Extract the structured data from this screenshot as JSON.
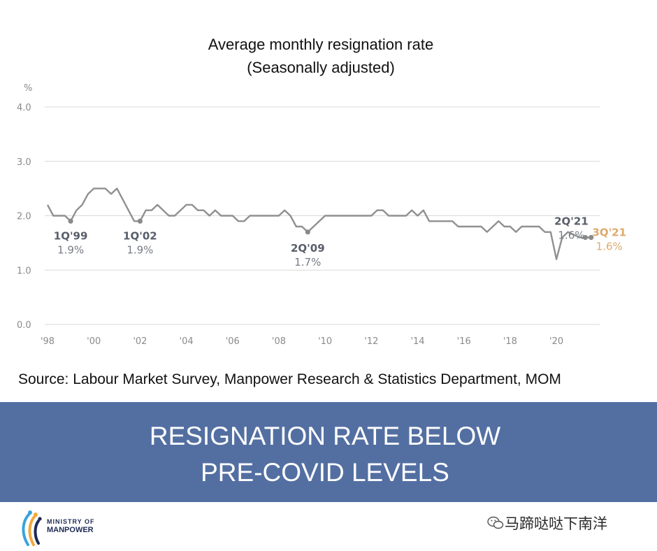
{
  "chart_data": {
    "type": "line",
    "title": "Average monthly resignation rate",
    "subtitle": "(Seasonally adjusted)",
    "y_unit": "%",
    "ylim": [
      0,
      4
    ],
    "y_ticks": [
      "4.0",
      "3.0",
      "2.0",
      "1.0",
      "0.0"
    ],
    "y_tick_values": [
      4,
      3,
      2,
      1,
      0
    ],
    "x_range": [
      1998,
      2021.75
    ],
    "x_ticks": [
      "'98",
      "'00",
      "'02",
      "'04",
      "'06",
      "'08",
      "'10",
      "'12",
      "'14",
      "'16",
      "'18",
      "'20"
    ],
    "x_tick_values": [
      1998,
      2000,
      2002,
      2004,
      2006,
      2008,
      2010,
      2012,
      2014,
      2016,
      2018,
      2020
    ],
    "grid": "horizontal",
    "series": [
      {
        "color": "#909090",
        "x": [
          1998.0,
          1998.25,
          1998.5,
          1998.75,
          1999.0,
          1999.25,
          1999.5,
          1999.75,
          2000.0,
          2000.25,
          2000.5,
          2000.75,
          2001.0,
          2001.25,
          2001.5,
          2001.75,
          2002.0,
          2002.25,
          2002.5,
          2002.75,
          2003.0,
          2003.25,
          2003.5,
          2003.75,
          2004.0,
          2004.25,
          2004.5,
          2004.75,
          2005.0,
          2005.25,
          2005.5,
          2005.75,
          2006.0,
          2006.25,
          2006.5,
          2006.75,
          2007.0,
          2007.25,
          2007.5,
          2007.75,
          2008.0,
          2008.25,
          2008.5,
          2008.75,
          2009.0,
          2009.25,
          2009.5,
          2009.75,
          2010.0,
          2010.25,
          2010.5,
          2010.75,
          2011.0,
          2011.25,
          2011.5,
          2011.75,
          2012.0,
          2012.25,
          2012.5,
          2012.75,
          2013.0,
          2013.25,
          2013.5,
          2013.75,
          2014.0,
          2014.25,
          2014.5,
          2014.75,
          2015.0,
          2015.25,
          2015.5,
          2015.75,
          2016.0,
          2016.25,
          2016.5,
          2016.75,
          2017.0,
          2017.25,
          2017.5,
          2017.75,
          2018.0,
          2018.25,
          2018.5,
          2018.75,
          2019.0,
          2019.25,
          2019.5,
          2019.75,
          2020.0,
          2020.25,
          2020.5,
          2020.75,
          2021.0,
          2021.25,
          2021.5
        ],
        "values": [
          2.2,
          2.0,
          2.0,
          2.0,
          1.9,
          2.1,
          2.2,
          2.4,
          2.5,
          2.5,
          2.5,
          2.4,
          2.5,
          2.3,
          2.1,
          1.9,
          1.9,
          2.1,
          2.1,
          2.2,
          2.1,
          2.0,
          2.0,
          2.1,
          2.2,
          2.2,
          2.1,
          2.1,
          2.0,
          2.1,
          2.0,
          2.0,
          2.0,
          1.9,
          1.9,
          2.0,
          2.0,
          2.0,
          2.0,
          2.0,
          2.0,
          2.1,
          2.0,
          1.8,
          1.8,
          1.7,
          1.8,
          1.9,
          2.0,
          2.0,
          2.0,
          2.0,
          2.0,
          2.0,
          2.0,
          2.0,
          2.0,
          2.1,
          2.1,
          2.0,
          2.0,
          2.0,
          2.0,
          2.1,
          2.0,
          2.1,
          1.9,
          1.9,
          1.9,
          1.9,
          1.9,
          1.8,
          1.8,
          1.8,
          1.8,
          1.8,
          1.7,
          1.8,
          1.9,
          1.8,
          1.8,
          1.7,
          1.8,
          1.8,
          1.8,
          1.8,
          1.7,
          1.7,
          1.2,
          1.6,
          1.7,
          1.65,
          1.6,
          1.6,
          1.6
        ]
      }
    ],
    "annotations": [
      {
        "label": "1Q'99",
        "value": "1.9%",
        "x": 1999.0,
        "y": 1.9,
        "highlight": false
      },
      {
        "label": "1Q'02",
        "value": "1.9%",
        "x": 2002.0,
        "y": 1.9,
        "highlight": false
      },
      {
        "label": "2Q'09",
        "value": "1.7%",
        "x": 2009.25,
        "y": 1.7,
        "highlight": false
      },
      {
        "label": "2Q'21",
        "value": "1.6%",
        "x": 2021.25,
        "y": 1.6,
        "highlight": false
      },
      {
        "label": "3Q'21",
        "value": "1.6%",
        "x": 2021.5,
        "y": 1.6,
        "highlight": true
      }
    ]
  },
  "source": "Source: Labour Market Survey, Manpower Research & Statistics Department, MOM",
  "banner": {
    "line1": "RESIGNATION RATE BELOW",
    "line2": "PRE-COVID LEVELS",
    "color": "#536fa2"
  },
  "footer": {
    "logo_line1": "MINISTRY OF",
    "logo_line2": "MANPOWER",
    "logo_icon": "ministry-of-manpower-logo",
    "watermark": "马蹄哒哒下南洋",
    "watermark_icon": "wechat-icon"
  }
}
